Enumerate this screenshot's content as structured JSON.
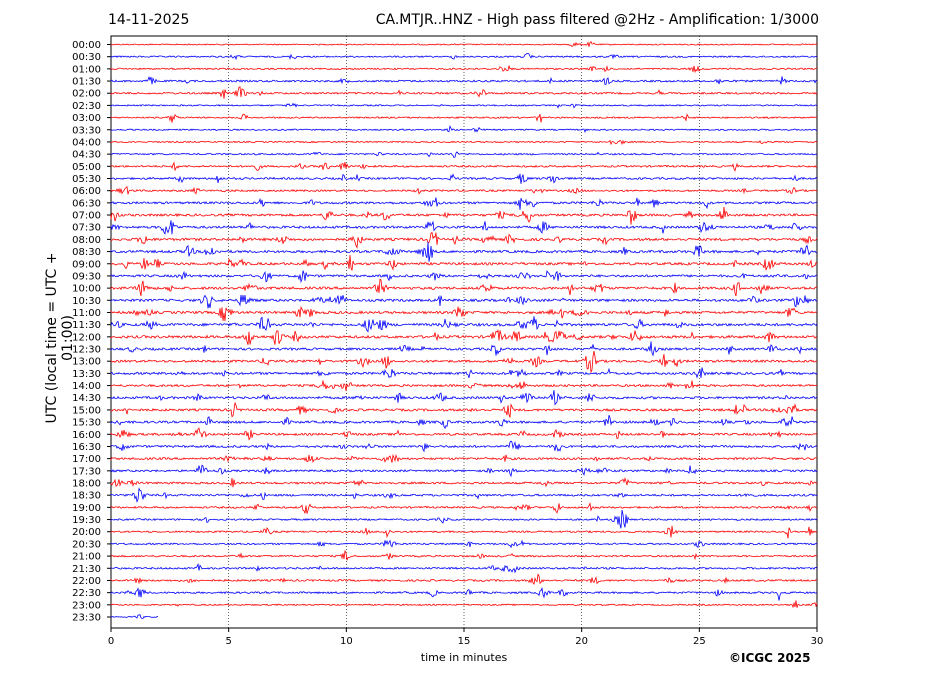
{
  "header": {
    "date": "14-11-2025",
    "title": "CA.MTJR..HNZ - High pass filtered @2Hz - Amplification: 1/3000"
  },
  "footer": {
    "copyright": "©ICGC 2025"
  },
  "chart_data": {
    "type": "line",
    "title": "CA.MTJR..HNZ - High pass filtered @2Hz - Amplification: 1/3000",
    "xlabel": "time in minutes",
    "ylabel": "UTC (local time = UTC + 01:00)",
    "xlim": [
      0,
      30
    ],
    "x_ticks": [
      0,
      5,
      10,
      15,
      20,
      25,
      30
    ],
    "grid": "vertical dotted",
    "trace_colors": [
      "#ff0000",
      "#0000ff"
    ],
    "rows": [
      "00:00",
      "00:30",
      "01:00",
      "01:30",
      "02:00",
      "02:30",
      "03:00",
      "03:30",
      "04:00",
      "04:30",
      "05:00",
      "05:30",
      "06:00",
      "06:30",
      "07:00",
      "07:30",
      "08:00",
      "08:30",
      "09:00",
      "09:30",
      "10:00",
      "10:30",
      "11:00",
      "11:30",
      "12:00",
      "12:30",
      "13:00",
      "13:30",
      "14:00",
      "14:30",
      "15:00",
      "15:30",
      "16:00",
      "16:30",
      "17:00",
      "17:30",
      "18:00",
      "18:30",
      "19:00",
      "19:30",
      "20:00",
      "20:30",
      "21:00",
      "21:30",
      "22:00",
      "22:30",
      "23:00",
      "23:30"
    ],
    "row_activity": [
      0.1,
      0.3,
      0.3,
      0.5,
      0.5,
      0.2,
      0.3,
      0.2,
      0.2,
      0.3,
      0.5,
      0.6,
      0.5,
      0.7,
      0.8,
      0.8,
      0.9,
      0.9,
      0.9,
      0.8,
      0.9,
      0.9,
      0.9,
      1.0,
      1.0,
      0.8,
      0.8,
      0.8,
      0.7,
      0.8,
      0.8,
      0.8,
      0.7,
      0.7,
      0.7,
      0.6,
      0.6,
      0.6,
      0.5,
      0.4,
      0.4,
      0.4,
      0.4,
      0.5,
      0.5,
      0.5,
      0.2,
      0.05
    ],
    "row_extent_minutes": {
      "23:30": 2
    }
  }
}
